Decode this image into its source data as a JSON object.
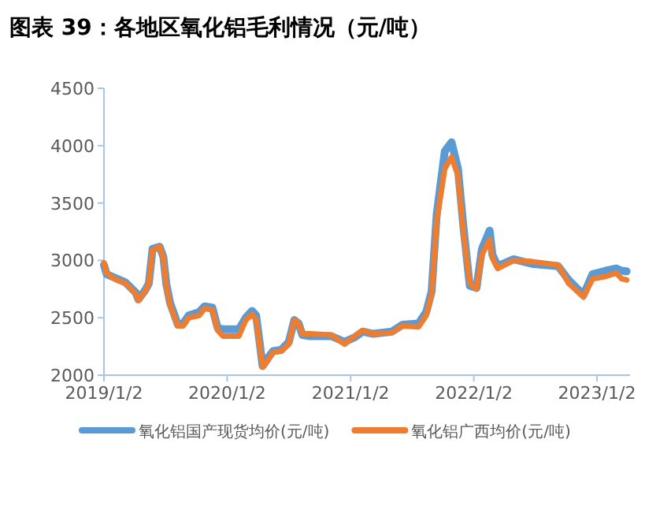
{
  "chart_data": {
    "type": "line",
    "title": "图表 39：各地区氧化铝毛利情况（元/吨）",
    "x": [
      "2019-01-02",
      "2019-01-10",
      "2019-02-02",
      "2019-03-06",
      "2019-04-06",
      "2019-04-14",
      "2019-05-04",
      "2019-05-15",
      "2019-05-26",
      "2019-06-16",
      "2019-06-27",
      "2019-07-06",
      "2019-07-17",
      "2019-08-09",
      "2019-08-25",
      "2019-09-10",
      "2019-10-11",
      "2019-10-27",
      "2019-11-19",
      "2019-12-05",
      "2019-12-21",
      "2020-02-06",
      "2020-02-26",
      "2020-03-16",
      "2020-03-28",
      "2020-04-08",
      "2020-04-16",
      "2020-05-02",
      "2020-05-17",
      "2020-06-10",
      "2020-07-03",
      "2020-07-19",
      "2020-08-01",
      "2020-08-12",
      "2020-09-04",
      "2020-11-06",
      "2020-12-15",
      "2021-01-14",
      "2021-02-07",
      "2021-03-10",
      "2021-05-04",
      "2021-06-05",
      "2021-07-22",
      "2021-08-14",
      "2021-08-30",
      "2021-09-14",
      "2021-10-08",
      "2021-10-28",
      "2021-11-16",
      "2021-12-02",
      "2021-12-21",
      "2022-01-10",
      "2022-01-26",
      "2022-02-18",
      "2022-02-26",
      "2022-03-14",
      "2022-04-30",
      "2022-06-23",
      "2022-09-09",
      "2022-10-10",
      "2022-11-23",
      "2022-12-20",
      "2023-01-28",
      "2023-02-28",
      "2023-03-16",
      "2023-03-31"
    ],
    "series": [
      {
        "name": "氧化铝国产现货均价(元/吨)",
        "color": "#5b9bd5",
        "values": [
          2960,
          2880,
          2850,
          2810,
          2720,
          2660,
          2740,
          2800,
          3100,
          3120,
          3030,
          2790,
          2630,
          2440,
          2450,
          2520,
          2550,
          2600,
          2590,
          2410,
          2400,
          2400,
          2500,
          2560,
          2520,
          2270,
          2080,
          2150,
          2210,
          2220,
          2290,
          2480,
          2450,
          2350,
          2340,
          2340,
          2290,
          2330,
          2380,
          2360,
          2380,
          2440,
          2450,
          2550,
          2730,
          3400,
          3950,
          4030,
          3800,
          3300,
          2780,
          2760,
          3100,
          3260,
          3050,
          2950,
          3010,
          2970,
          2950,
          2830,
          2700,
          2880,
          2910,
          2930,
          2910,
          2905
        ]
      },
      {
        "name": "氧化铝广西均价(元/吨)",
        "color": "#ed7d31",
        "values": [
          2980,
          2890,
          2840,
          2800,
          2710,
          2650,
          2730,
          2800,
          3090,
          3120,
          3020,
          2770,
          2610,
          2430,
          2430,
          2500,
          2520,
          2580,
          2570,
          2390,
          2340,
          2340,
          2480,
          2530,
          2480,
          2250,
          2070,
          2130,
          2200,
          2210,
          2270,
          2480,
          2450,
          2360,
          2360,
          2350,
          2270,
          2340,
          2390,
          2360,
          2370,
          2430,
          2420,
          2520,
          2700,
          3340,
          3800,
          3900,
          3740,
          3250,
          2800,
          2750,
          3050,
          3180,
          3020,
          2930,
          3000,
          2990,
          2960,
          2800,
          2680,
          2840,
          2860,
          2890,
          2840,
          2830
        ]
      }
    ],
    "xlim": [
      "2019-01-02",
      "2023-04-10"
    ],
    "xticks": [
      {
        "value": "2019-01-02",
        "label": "2019/1/2"
      },
      {
        "value": "2020-01-02",
        "label": "2020/1/2"
      },
      {
        "value": "2021-01-02",
        "label": "2021/1/2"
      },
      {
        "value": "2022-01-02",
        "label": "2022/1/2"
      },
      {
        "value": "2023-01-02",
        "label": "2023/1/2"
      }
    ],
    "ylim": [
      2000,
      4500
    ],
    "yticks": [
      2000,
      2500,
      3000,
      3500,
      4000,
      4500
    ],
    "legend": "bottom",
    "marker": "none",
    "line_style": "solid"
  }
}
